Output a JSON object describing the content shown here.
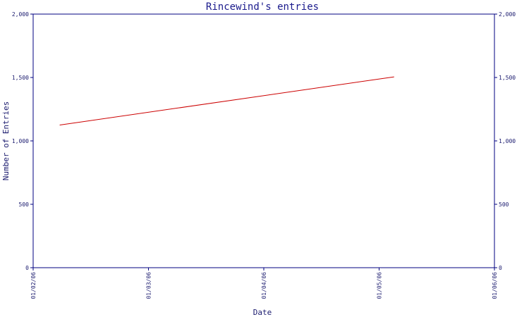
{
  "chart_data": {
    "type": "line",
    "title": "Rincewind's entries",
    "xlabel": "Date",
    "ylabel": "Number of Entries",
    "x_ticks": [
      "01/02/06",
      "01/03/06",
      "01/04/06",
      "01/05/06",
      "01/06/06"
    ],
    "y_ticks": [
      "0",
      "500",
      "1,000",
      "1,500",
      "2,000"
    ],
    "ylim": [
      0,
      2000
    ],
    "xlim": [
      "2006-01-02",
      "2006-01-06"
    ],
    "grid": false,
    "series": [
      {
        "x": [
          "2006-01-02",
          "2006-01-05"
        ],
        "y": [
          1125,
          1505
        ],
        "x_fraction": [
          0.23,
          0.13
        ],
        "color": "#cc0000"
      }
    ],
    "colors": {
      "axis": "#000080",
      "line": "#cc0000",
      "title": "#1a1a8c"
    }
  }
}
